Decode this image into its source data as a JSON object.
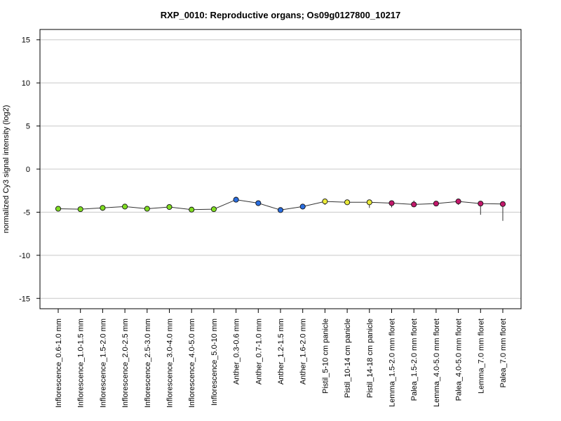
{
  "chart_data": {
    "type": "line",
    "title": "RXP_0010: Reproductive organs; Os09g0127800_10217",
    "xlabel": "",
    "ylabel": "normalized Cy3 signal intensity (log2)",
    "ylim": [
      -16.2,
      16.2
    ],
    "yticks": [
      -15,
      -10,
      -5,
      0,
      5,
      10,
      15
    ],
    "grid": true,
    "categories": [
      "Inflorescence_0.6-1.0 mm",
      "Inflorescence_1.0-1.5 mm",
      "Inflorescence_1.5-2.0 mm",
      "Inflorescence_2.0-2.5 mm",
      "Inflorescence_2.5-3.0 mm",
      "Inflorescence_3.0-4.0 mm",
      "Inflorescence_4.0-5.0 mm",
      "Inflorescence_5.0-10 mm",
      "Anther_0.3-0.6 mm",
      "Anther_0.7-1.0 mm",
      "Anther_1.2-1.5 mm",
      "Anther_1.6-2.0 mm",
      "Pistil_5-10 cm panicle",
      "Pistil_10-14 cm panicle",
      "Pistil_14-18 cm panicle",
      "Lemma_1.5-2.0 mm floret",
      "Palea_1.5-2.0 mm floret",
      "Lemma_4.0-5.0 mm floret",
      "Palea_4.0-5.0 mm floret",
      "Lemma_7.0 mm floret",
      "Palea_7.0 mm floret"
    ],
    "values": [
      -4.6,
      -4.65,
      -4.5,
      -4.35,
      -4.6,
      -4.4,
      -4.7,
      -4.65,
      -3.55,
      -3.95,
      -4.75,
      -4.35,
      -3.75,
      -3.85,
      -3.85,
      -3.95,
      -4.1,
      -4.0,
      -3.75,
      -4.0,
      -4.05
    ],
    "error_low": [
      -4.9,
      -4.8,
      -4.6,
      -4.45,
      -4.75,
      -4.55,
      -4.8,
      -4.8,
      -3.65,
      -4.2,
      -4.85,
      -4.65,
      -4.15,
      -4.1,
      -4.5,
      -4.45,
      -4.25,
      -4.1,
      -4.15,
      -5.3,
      -6.0
    ],
    "error_high": [
      -4.35,
      -4.5,
      -4.4,
      -4.25,
      -4.45,
      -4.3,
      -4.55,
      -4.5,
      -3.45,
      -3.75,
      -4.65,
      -4.1,
      -3.55,
      -3.7,
      -3.7,
      -3.75,
      -3.65,
      -3.9,
      -3.6,
      -3.85,
      -3.95
    ],
    "point_colors": [
      "#80dd22",
      "#80dd22",
      "#80dd22",
      "#80dd22",
      "#80dd22",
      "#80dd22",
      "#80dd22",
      "#80dd22",
      "#2a6ee0",
      "#2a6ee0",
      "#2a6ee0",
      "#2a6ee0",
      "#eaea3a",
      "#eaea3a",
      "#eaea3a",
      "#c2186b",
      "#c2186b",
      "#c2186b",
      "#c2186b",
      "#c2186b",
      "#c2186b"
    ],
    "line_color": "#333333",
    "grid_color": "#c8c8c8"
  }
}
